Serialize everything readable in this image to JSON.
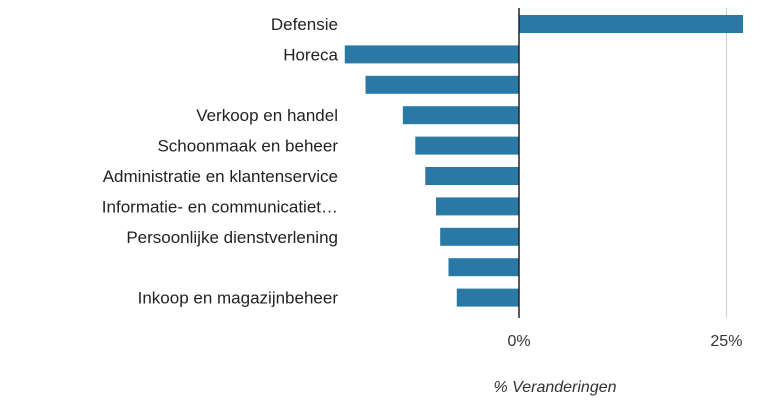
{
  "chart_data": {
    "type": "bar",
    "orientation": "horizontal",
    "categories": [
      "Defensie",
      "Horeca",
      "",
      "Verkoop en handel",
      "Schoonmaak en beheer",
      "Administratie en klantenservice",
      "Informatie- en communicatiet…",
      "Persoonlijke dienstverlening",
      "",
      "Inkoop en magazijnbeheer"
    ],
    "values": [
      27,
      -21,
      -18.5,
      -14,
      -12.5,
      -11.3,
      -10,
      -9.5,
      -8.5,
      -7.5
    ],
    "xlabel": "% Veranderingen",
    "xlim": [
      -21,
      27
    ],
    "xticks": [
      0,
      25
    ],
    "xtick_labels": [
      "0%",
      "25%"
    ],
    "grid": "vertical gridline at 25% only",
    "bar_color": "#2a78a4",
    "zero_line_color": "#222222",
    "grid_color": "#cccccc"
  }
}
